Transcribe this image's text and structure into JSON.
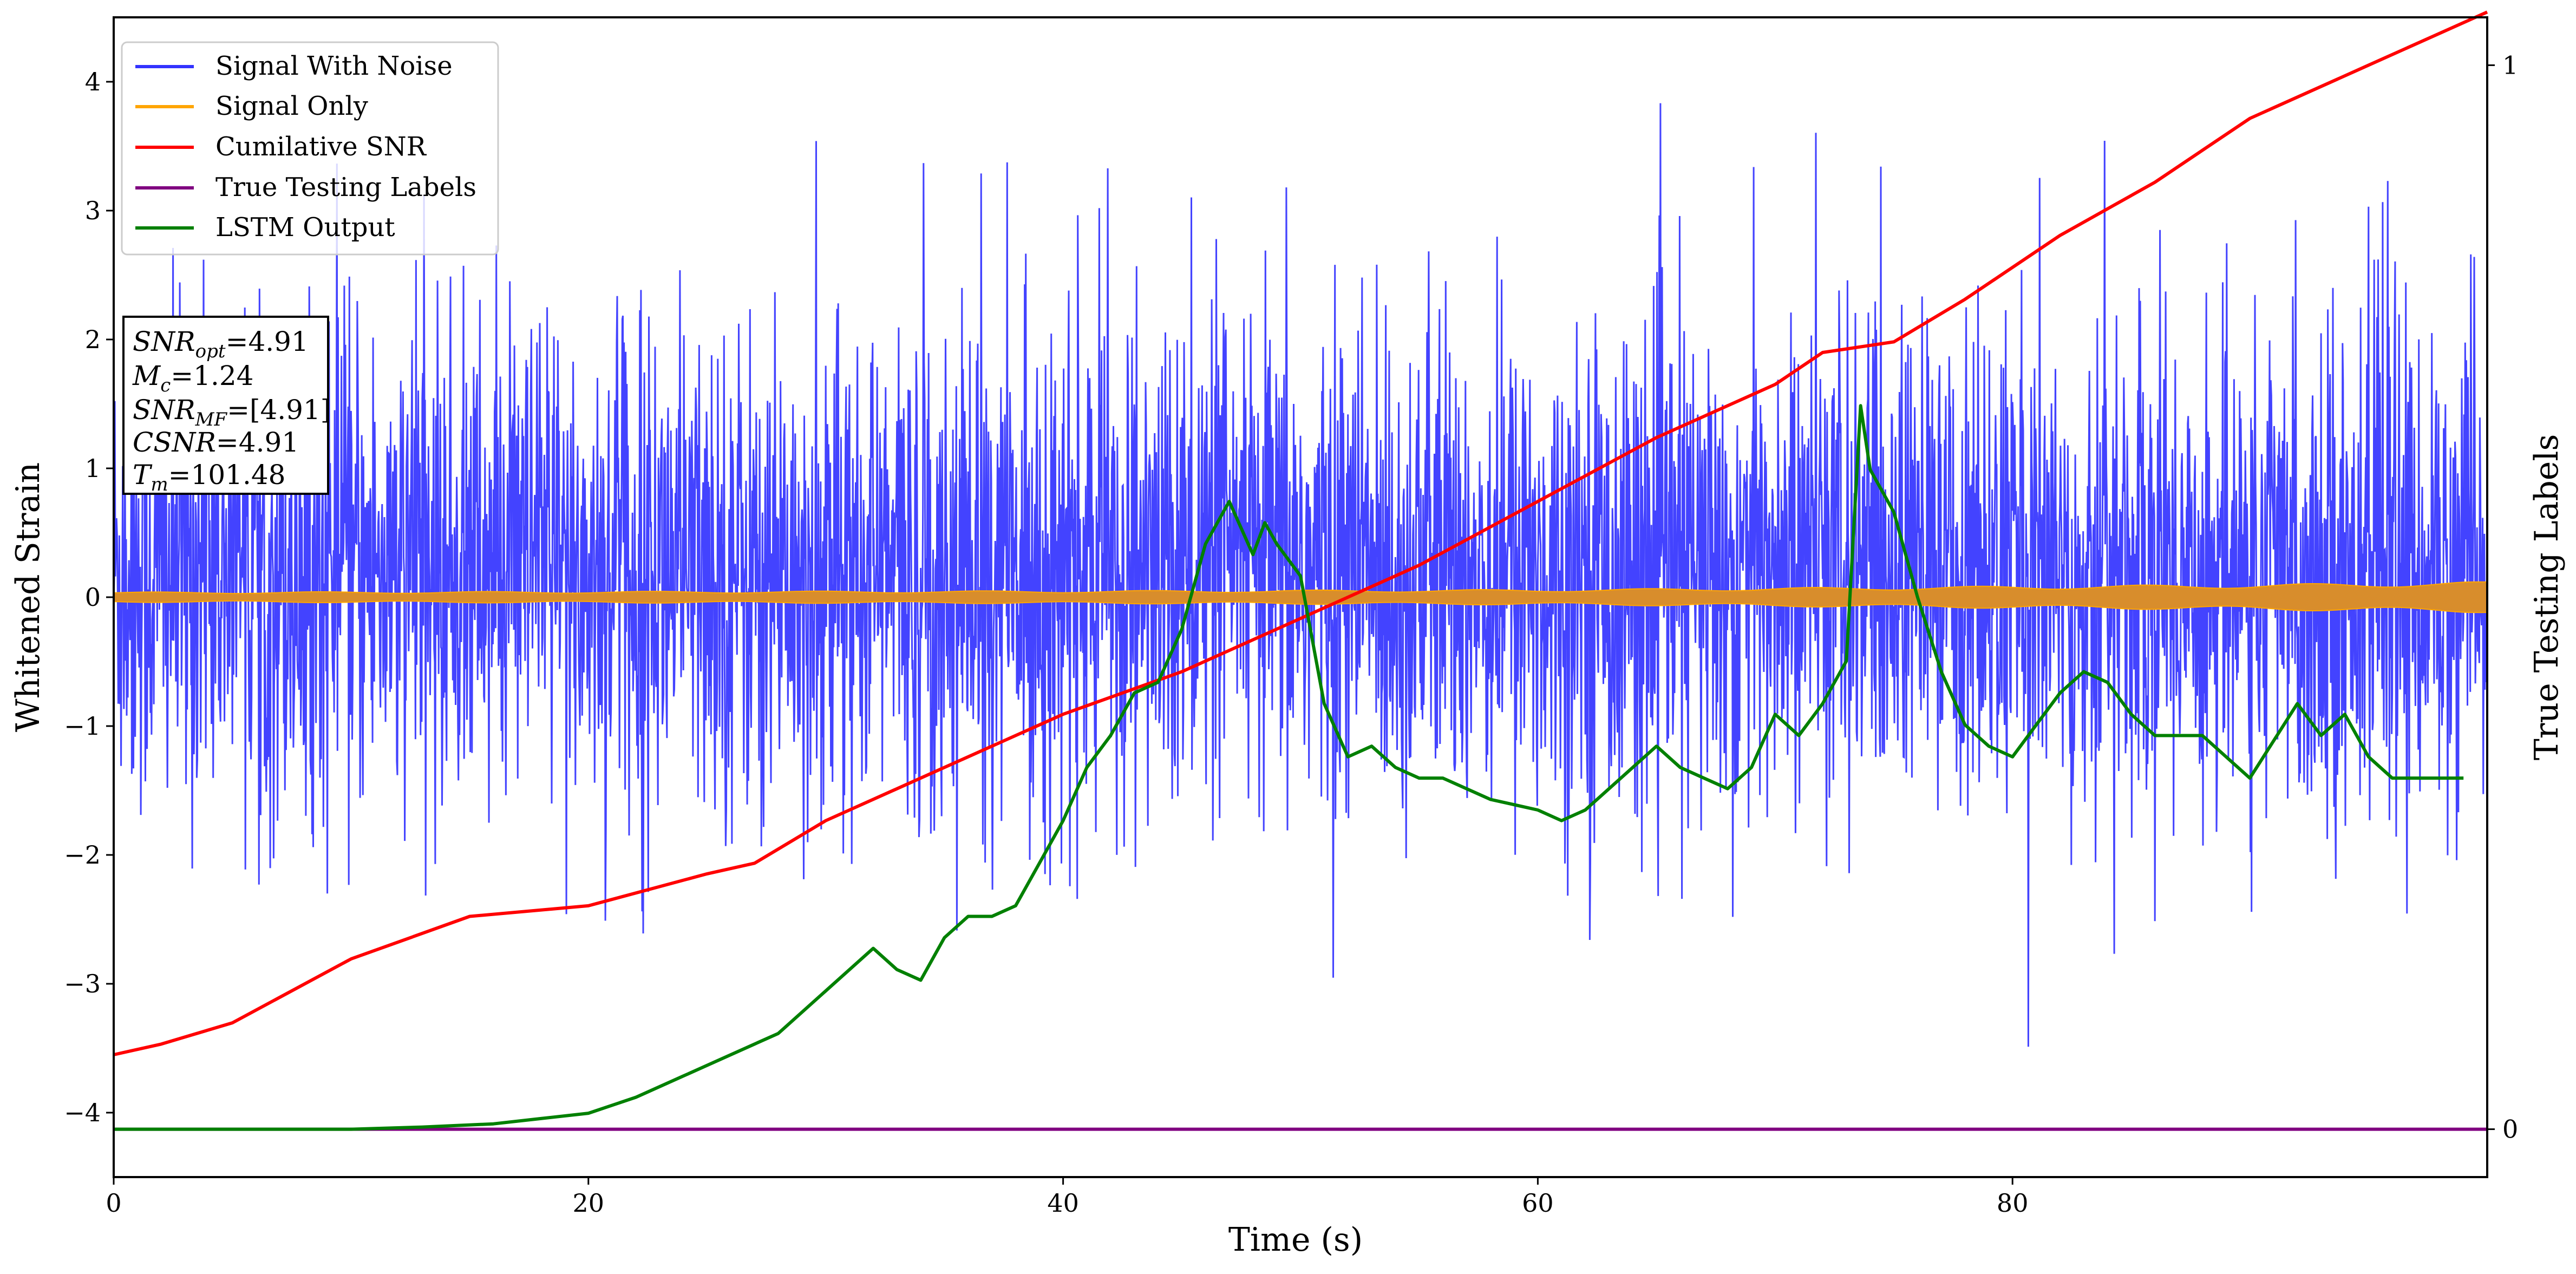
{
  "chart_data": {
    "type": "line",
    "xlabel": "Time (s)",
    "ylabel": "Whitened Strain",
    "y2label": "True Testing Labels",
    "xlim": [
      0,
      100
    ],
    "ylim": [
      -4.5,
      4.5
    ],
    "y2lim": [
      -0.045,
      1.045
    ],
    "xticks": [
      0,
      20,
      40,
      60,
      80
    ],
    "yticks": [
      -4,
      -3,
      -2,
      -1,
      0,
      1,
      2,
      3,
      4
    ],
    "y2ticks": [
      0,
      1
    ],
    "grid": false,
    "legend_position": "top-left",
    "series": [
      {
        "name": "Signal With Noise",
        "color": "#3333ff",
        "axis": "left",
        "style": "dense random noise, roughly within -2.2 to 3.0 with spikes up to about 4.0 and down to about -4.1"
      },
      {
        "name": "Signal Only",
        "color": "#ffa500",
        "axis": "left",
        "amplitude_envelope": {
          "x": [
            0,
            40,
            60,
            75,
            90,
            100
          ],
          "y": [
            0.04,
            0.05,
            0.06,
            0.08,
            0.1,
            0.12
          ]
        }
      },
      {
        "name": "Cumilative SNR",
        "color": "#ff0000",
        "axis": "right",
        "x": [
          0,
          2,
          5,
          10,
          15,
          20,
          25,
          27,
          30,
          35,
          40,
          45,
          50,
          55,
          60,
          65,
          70,
          72,
          75,
          78,
          82,
          86,
          90,
          95,
          100
        ],
        "y": [
          0.07,
          0.08,
          0.1,
          0.16,
          0.2,
          0.21,
          0.24,
          0.25,
          0.29,
          0.34,
          0.39,
          0.43,
          0.48,
          0.53,
          0.59,
          0.65,
          0.7,
          0.73,
          0.74,
          0.78,
          0.84,
          0.89,
          0.95,
          1.0,
          1.05
        ]
      },
      {
        "name": "True Testing Labels",
        "color": "#800080",
        "axis": "right",
        "x": [
          0,
          100
        ],
        "y": [
          0,
          0
        ]
      },
      {
        "name": "LSTM Output",
        "color": "#008000",
        "axis": "right",
        "x": [
          0,
          10,
          13,
          16,
          18,
          20,
          22,
          24,
          26,
          28,
          30,
          32,
          33,
          34,
          35,
          36,
          37,
          38,
          39,
          40,
          41,
          42,
          43,
          44,
          45,
          46,
          47,
          48,
          48.5,
          49,
          50,
          51,
          52,
          53,
          54,
          55,
          56,
          57,
          58,
          60,
          61,
          62,
          64,
          65,
          66,
          67,
          68,
          69,
          70,
          71,
          72,
          73,
          73.6,
          74,
          75,
          76,
          77,
          78,
          79,
          80,
          81,
          82,
          83,
          84,
          85,
          86,
          88,
          90,
          92,
          93,
          94,
          95,
          96,
          98,
          99
        ],
        "y": [
          0,
          0,
          0.002,
          0.005,
          0.01,
          0.015,
          0.03,
          0.05,
          0.07,
          0.09,
          0.13,
          0.17,
          0.15,
          0.14,
          0.18,
          0.2,
          0.2,
          0.21,
          0.25,
          0.29,
          0.34,
          0.37,
          0.41,
          0.42,
          0.47,
          0.55,
          0.59,
          0.54,
          0.57,
          0.55,
          0.52,
          0.4,
          0.35,
          0.36,
          0.34,
          0.33,
          0.33,
          0.32,
          0.31,
          0.3,
          0.29,
          0.3,
          0.34,
          0.36,
          0.34,
          0.33,
          0.32,
          0.34,
          0.39,
          0.37,
          0.4,
          0.44,
          0.68,
          0.62,
          0.58,
          0.5,
          0.43,
          0.38,
          0.36,
          0.35,
          0.38,
          0.41,
          0.43,
          0.42,
          0.39,
          0.37,
          0.37,
          0.33,
          0.4,
          0.37,
          0.39,
          0.35,
          0.33,
          0.33,
          0.33
        ]
      }
    ],
    "annotation": {
      "lines": [
        {
          "name": "SNR",
          "sub": "opt",
          "value": "=4.91"
        },
        {
          "name": "M",
          "sub": "c",
          "value": "=1.24"
        },
        {
          "name": "SNR",
          "sub": "MF",
          "value": "=[4.91]"
        },
        {
          "name": "CSNR",
          "sub": "",
          "value": "=4.91"
        },
        {
          "name": "T",
          "sub": "m",
          "value": "=101.48"
        }
      ]
    }
  }
}
